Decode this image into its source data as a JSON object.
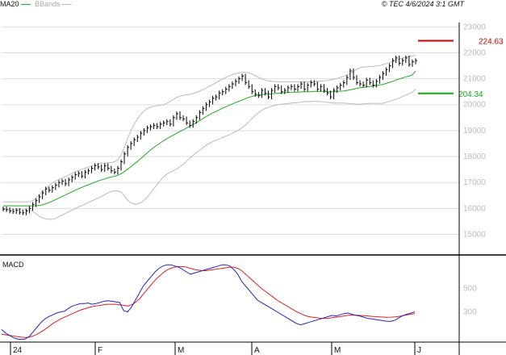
{
  "legend": {
    "ma_label": "MA20",
    "bands_label": "BBands"
  },
  "copyright": "© TEC 4/6/2024 3:1 GMT",
  "colors": {
    "price": "#000000",
    "ma": "#22aa22",
    "bands": "#bbbbbb",
    "macd": "#2222cc",
    "signal": "#dd2222",
    "target": "#cc0000",
    "support": "#11aa11",
    "grid": "#dddddd"
  },
  "chart_data": [
    {
      "type": "line",
      "title": "",
      "x_labels": [
        "24",
        "F",
        "M",
        "A",
        "M",
        "J"
      ],
      "y_ticks": [
        "23000",
        "22000",
        "21000",
        "20000",
        "19000",
        "18000",
        "17000",
        "16000",
        "15000"
      ],
      "ylim": [
        14300,
        23600
      ],
      "grid": true,
      "series": [
        {
          "name": "",
          "type": "ohlc",
          "values": [
            15980,
            15950,
            15900,
            15880,
            15920,
            15850,
            15830,
            15900,
            16000,
            16150,
            16300,
            16450,
            16600,
            16750,
            16700,
            16800,
            16900,
            17000,
            17050,
            16950,
            17100,
            17200,
            17300,
            17350,
            17250,
            17400,
            17450,
            17550,
            17650,
            17600,
            17500,
            17650,
            17550,
            17450,
            17400,
            17550,
            17800,
            18100,
            18350,
            18500,
            18650,
            18750,
            18900,
            19000,
            19100,
            19150,
            19200,
            19150,
            19250,
            19300,
            19350,
            19250,
            19500,
            19650,
            19500,
            19450,
            19300,
            19200,
            19350,
            19500,
            19700,
            19850,
            20000,
            20100,
            20250,
            20300,
            20450,
            20500,
            20600,
            20700,
            20800,
            20900,
            21000,
            21100,
            20850,
            20700,
            20500,
            20400,
            20350,
            20550,
            20450,
            20300,
            20550,
            20700,
            20650,
            20500,
            20550,
            20650,
            20700,
            20600,
            20700,
            20800,
            20600,
            20750,
            20850,
            20800,
            20600,
            20700,
            20550,
            20450,
            20300,
            20550,
            20650,
            20750,
            20850,
            21050,
            21300,
            21050,
            20850,
            20800,
            20750,
            20950,
            20850,
            20750,
            20900,
            21050,
            21200,
            21350,
            21500,
            21700,
            21800,
            21600,
            21700,
            21800,
            21550,
            21650,
            21700
          ]
        },
        {
          "name": "MA20",
          "values": [
            16100,
            16100,
            16100,
            16100,
            16100,
            16100,
            16100,
            16100,
            16100,
            16100,
            16100,
            16110,
            16140,
            16180,
            16230,
            16280,
            16340,
            16400,
            16460,
            16520,
            16580,
            16640,
            16700,
            16760,
            16810,
            16860,
            16910,
            16960,
            17010,
            17060,
            17100,
            17140,
            17180,
            17210,
            17240,
            17280,
            17340,
            17420,
            17510,
            17610,
            17710,
            17810,
            17920,
            18030,
            18140,
            18250,
            18350,
            18440,
            18530,
            18610,
            18690,
            18760,
            18830,
            18900,
            18970,
            19030,
            19100,
            19170,
            19240,
            19310,
            19380,
            19460,
            19540,
            19610,
            19680,
            19740,
            19800,
            19860,
            19920,
            19970,
            20030,
            20080,
            20130,
            20180,
            20230,
            20280,
            20320,
            20350,
            20370,
            20390,
            20400,
            20410,
            20420,
            20430,
            20440,
            20450,
            20460,
            20470,
            20480,
            20480,
            20480,
            20490,
            20500,
            20500,
            20500,
            20510,
            20510,
            20510,
            20510,
            20500,
            20500,
            20500,
            20510,
            20520,
            20530,
            20550,
            20570,
            20600,
            20630,
            20650,
            20670,
            20690,
            20700,
            20720,
            20740,
            20760,
            20780,
            20820,
            20860,
            20900,
            20950,
            20990,
            21030,
            21070,
            21100,
            21150,
            21300
          ]
        },
        {
          "name": "BBands",
          "values_upper": [
            16250,
            16250,
            16250,
            16250,
            16250,
            16250,
            16250,
            16250,
            16260,
            16300,
            16400,
            16520,
            16640,
            16760,
            16880,
            16980,
            17060,
            17120,
            17170,
            17230,
            17290,
            17350,
            17410,
            17460,
            17510,
            17550,
            17590,
            17630,
            17680,
            17720,
            17740,
            17750,
            17760,
            17770,
            17800,
            17880,
            18050,
            18350,
            18700,
            19000,
            19250,
            19450,
            19620,
            19750,
            19850,
            19900,
            19940,
            19960,
            19980,
            20000,
            20050,
            20130,
            20200,
            20280,
            20330,
            20360,
            20380,
            20400,
            20430,
            20470,
            20520,
            20580,
            20640,
            20710,
            20780,
            20850,
            20920,
            20990,
            21050,
            21110,
            21160,
            21200,
            21230,
            21250,
            21250,
            21230,
            21180,
            21120,
            21050,
            20990,
            20950,
            20920,
            20900,
            20890,
            20880,
            20880,
            20880,
            20880,
            20880,
            20880,
            20880,
            20880,
            20880,
            20880,
            20880,
            20890,
            20900,
            20910,
            20920,
            20930,
            20950,
            20980,
            21010,
            21050,
            21090,
            21140,
            21200,
            21280,
            21360,
            21420,
            21450,
            21460,
            21470,
            21480,
            21490,
            21510,
            21540,
            21580,
            21620,
            21660,
            21710,
            21760,
            21800,
            21830,
            21860,
            21880,
            21900
          ],
          "values_lower": [
            15950,
            15950,
            15950,
            15950,
            15950,
            15950,
            15950,
            15950,
            15940,
            15900,
            15800,
            15700,
            15640,
            15600,
            15580,
            15580,
            15620,
            15680,
            15750,
            15810,
            15870,
            15930,
            15990,
            16060,
            16110,
            16170,
            16230,
            16290,
            16340,
            16400,
            16460,
            16530,
            16600,
            16650,
            16680,
            16680,
            16630,
            16490,
            16320,
            16220,
            16170,
            16170,
            16220,
            16310,
            16430,
            16600,
            16760,
            16920,
            17080,
            17220,
            17330,
            17390,
            17460,
            17520,
            17610,
            17700,
            17820,
            17940,
            18050,
            18150,
            18240,
            18340,
            18440,
            18510,
            18580,
            18630,
            18680,
            18730,
            18790,
            18830,
            18900,
            18960,
            19030,
            19110,
            19210,
            19330,
            19460,
            19580,
            19690,
            19790,
            19850,
            19900,
            19940,
            19970,
            20000,
            20020,
            20030,
            20040,
            20060,
            20070,
            20080,
            20100,
            20120,
            20120,
            20120,
            20130,
            20130,
            20120,
            20110,
            20090,
            20070,
            20060,
            20060,
            20060,
            20060,
            20050,
            20040,
            20030,
            20020,
            20020,
            20030,
            20040,
            20050,
            20050,
            20050,
            20050,
            20050,
            20090,
            20130,
            20170,
            20210,
            20250,
            20310,
            20370,
            20420,
            20480,
            20600
          ]
        }
      ],
      "annotations": [
        {
          "label": "224.63",
          "value": 22463,
          "color": "#cc0000"
        },
        {
          "label": "204.34",
          "value": 20434,
          "color": "#11aa11"
        }
      ]
    },
    {
      "type": "line",
      "title": "MACD",
      "y_ticks": [
        "500",
        "300"
      ],
      "ylim": [
        50,
        770
      ],
      "grid": false,
      "series": [
        {
          "name": "",
          "values": [
            150,
            120,
            100,
            80,
            70,
            65,
            70,
            90,
            130,
            170,
            210,
            240,
            260,
            275,
            290,
            300,
            305,
            330,
            350,
            360,
            370,
            370,
            375,
            365,
            370,
            380,
            390,
            395,
            390,
            385,
            380,
            310,
            300,
            340,
            400,
            460,
            520,
            560,
            600,
            640,
            670,
            690,
            700,
            700,
            690,
            680,
            660,
            640,
            620,
            630,
            640,
            650,
            660,
            670,
            680,
            690,
            700,
            700,
            690,
            660,
            620,
            560,
            520,
            480,
            440,
            400,
            380,
            360,
            340,
            320,
            300,
            280,
            260,
            240,
            220,
            200,
            190,
            200,
            210,
            220,
            230,
            240,
            250,
            260,
            270,
            265,
            275,
            285,
            290,
            280,
            270,
            265,
            255,
            245,
            240,
            235,
            230,
            225,
            220,
            220,
            230,
            250,
            270,
            280,
            290,
            300
          ]
        },
        {
          "name": "",
          "values": [
            110,
            105,
            100,
            95,
            90,
            85,
            82,
            85,
            95,
            110,
            130,
            150,
            175,
            200,
            220,
            240,
            255,
            270,
            285,
            300,
            315,
            325,
            335,
            345,
            350,
            355,
            360,
            365,
            365,
            365,
            360,
            355,
            350,
            360,
            380,
            410,
            450,
            490,
            530,
            570,
            600,
            630,
            655,
            670,
            680,
            685,
            685,
            680,
            670,
            660,
            655,
            650,
            650,
            655,
            660,
            665,
            670,
            675,
            680,
            680,
            670,
            650,
            620,
            590,
            560,
            530,
            500,
            475,
            450,
            425,
            400,
            380,
            360,
            340,
            320,
            300,
            285,
            270,
            260,
            255,
            250,
            245,
            245,
            245,
            250,
            255,
            260,
            265,
            270,
            272,
            272,
            270,
            268,
            265,
            262,
            260,
            258,
            256,
            254,
            255,
            258,
            262,
            268,
            274,
            280,
            286
          ]
        }
      ]
    }
  ]
}
